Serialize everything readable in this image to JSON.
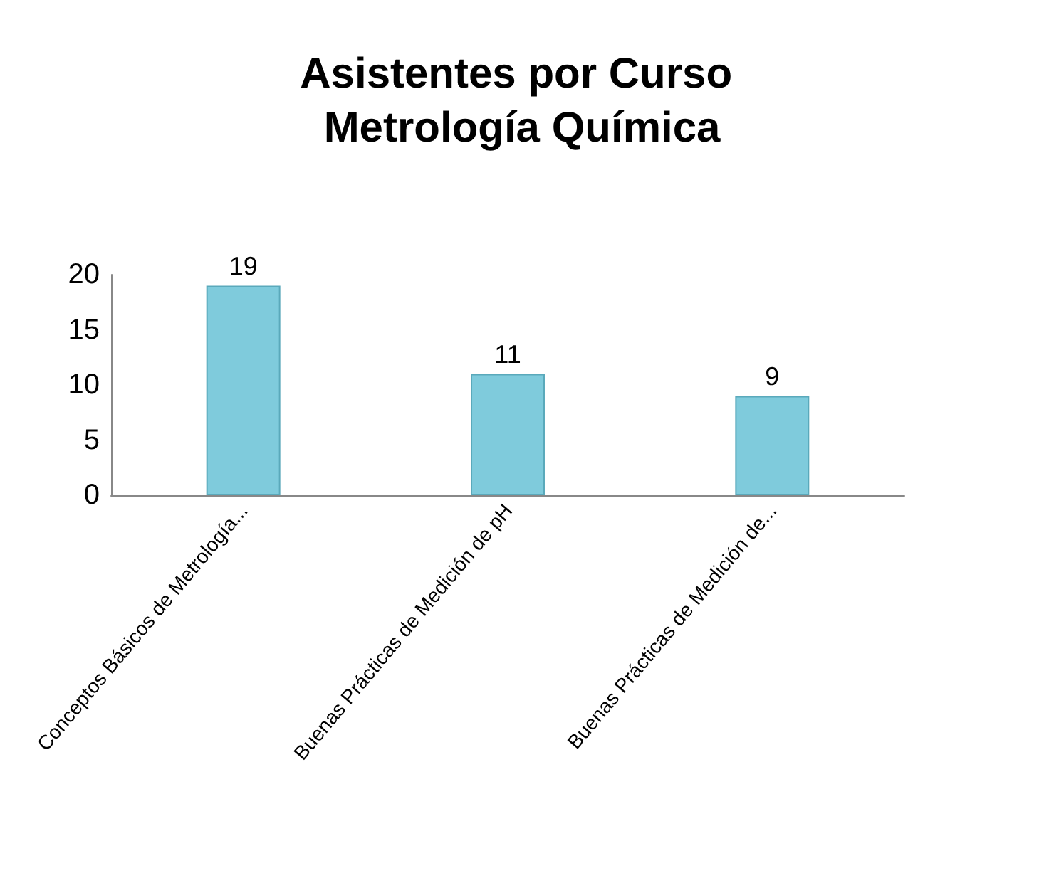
{
  "chart_data": {
    "type": "bar",
    "title": "Asistentes por Curso Metrología Química",
    "categories": [
      "Conceptos Básicos de Metrología...",
      "Buenas Prácticas de Medición de pH",
      "Buenas Prácticas de Medición de..."
    ],
    "values": [
      19,
      11,
      9
    ],
    "color": "#7fcbdc",
    "ylim": [
      0,
      20
    ],
    "yticks": [
      0,
      5,
      10,
      15,
      20
    ],
    "grid": false,
    "data_labels": true
  }
}
